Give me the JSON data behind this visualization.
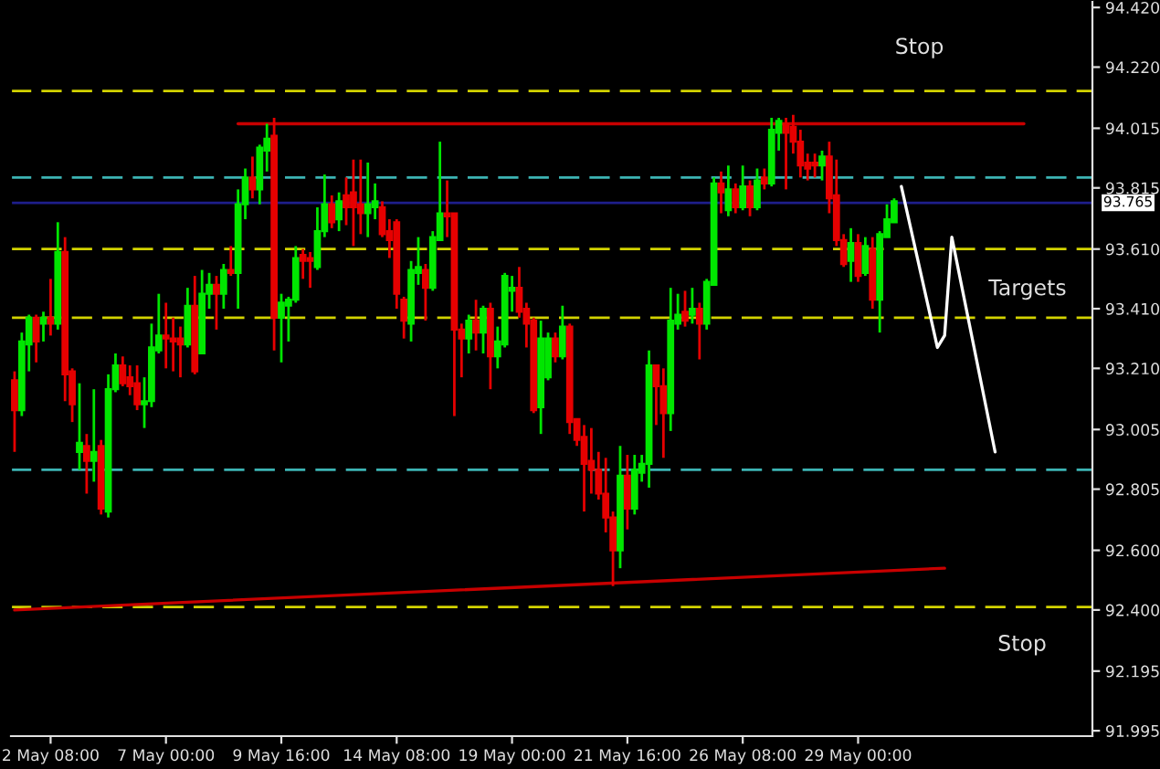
{
  "chart_data": {
    "type": "candlestick",
    "categories": [
      null,
      null,
      null,
      null,
      null,
      "2 May 08:00",
      null,
      null,
      null,
      null,
      null,
      null,
      null,
      null,
      null,
      null,
      null,
      null,
      null,
      null,
      null,
      "7 May 00:00",
      null,
      null,
      null,
      null,
      null,
      null,
      null,
      null,
      null,
      null,
      null,
      null,
      null,
      null,
      null,
      "9 May 16:00",
      null,
      null,
      null,
      null,
      null,
      null,
      null,
      null,
      null,
      null,
      null,
      null,
      null,
      null,
      null,
      "14 May 08:00",
      null,
      null,
      null,
      null,
      null,
      null,
      null,
      null,
      null,
      null,
      null,
      null,
      null,
      null,
      null,
      "19 May 00:00",
      null,
      null,
      null,
      null,
      null,
      null,
      null,
      null,
      null,
      null,
      null,
      null,
      null,
      null,
      null,
      "21 May 16:00",
      null,
      null,
      null,
      null,
      null,
      null,
      null,
      null,
      null,
      null,
      null,
      null,
      null,
      null,
      null,
      "26 May 08:00",
      null,
      null,
      null,
      null,
      null,
      null,
      null,
      null,
      null,
      null,
      null,
      null,
      null,
      null,
      null,
      "29 May 00:00",
      null,
      null,
      null,
      null,
      null,
      null,
      null,
      null,
      null,
      null,
      null,
      null,
      null,
      null,
      null,
      null,
      null,
      null,
      null,
      null,
      null,
      null,
      null,
      null,
      null,
      null,
      null,
      null,
      null,
      null,
      null,
      null
    ],
    "colors": [
      "#e60000",
      "#00e600",
      "#00e600",
      "#e60000",
      "#00e600",
      "#e60000",
      "#00e600",
      "#e60000",
      "#e60000",
      "#00e600",
      "#e60000",
      "#00e600",
      "#e60000",
      "#00e600",
      "#00e600",
      "#e60000",
      "#e60000",
      "#e60000",
      "#00e600",
      "#00e600",
      "#00e600",
      "#e60000",
      "#e60000",
      "#e60000",
      "#00e600",
      "#e60000",
      "#00e600",
      "#00e600",
      "#e60000",
      "#00e600",
      "#e60000",
      "#00e600",
      "#00e600",
      "#e60000",
      "#00e600",
      "#00e600",
      "#e60000",
      "#00e600",
      "#00e600",
      "#00e600",
      "#e60000",
      "#e60000",
      "#00e600",
      "#00e600",
      "#e60000",
      "#00e600",
      "#e60000",
      "#e60000",
      "#e60000",
      "#00e600",
      "#00e600",
      "#e60000",
      "#e60000",
      "#e60000",
      "#e60000",
      "#00e600",
      "#00e600",
      "#e60000",
      "#00e600",
      "#00e600",
      "#e60000",
      "#e60000",
      "#e60000",
      "#00e600",
      "#e60000",
      "#00e600",
      "#e60000",
      "#00e600",
      "#00e600",
      "#00e600",
      "#e60000",
      "#e60000",
      "#e60000",
      "#00e600",
      "#00e600",
      "#e60000",
      "#00e600",
      "#e60000",
      "#e60000",
      "#e60000",
      "#e60000",
      "#e60000",
      "#e60000",
      "#e60000",
      "#00e600",
      "#e60000",
      "#00e600",
      "#00e600",
      "#00e600",
      "#e60000",
      "#e60000",
      "#00e600",
      "#00e600",
      "#e60000",
      "#00e600",
      "#e60000",
      "#00e600",
      "#00e600",
      "#e60000",
      "#00e600",
      "#e60000",
      "#00e600",
      "#e60000",
      "#00e600",
      "#e60000",
      "#00e600",
      "#00e600",
      "#e60000",
      "#e60000",
      "#e60000",
      "#e60000",
      "#e60000",
      "#00e600",
      "#e60000",
      "#e60000",
      "#e60000",
      "#00e600",
      "#e60000",
      "#00e600",
      "#e60000",
      "#00e600",
      "#00e600",
      "#00e600",
      null,
      null,
      null,
      null,
      null,
      null,
      null,
      null,
      null,
      null,
      null,
      null,
      null,
      null,
      null,
      null,
      null,
      null,
      null,
      null,
      null,
      null,
      null,
      null,
      null,
      null,
      null
    ],
    "ohlc": [
      [
        93.17,
        93.2,
        92.93,
        93.07
      ],
      [
        93.07,
        93.33,
        93.05,
        93.3
      ],
      [
        93.29,
        93.39,
        93.2,
        93.38
      ],
      [
        93.38,
        93.39,
        93.23,
        93.3
      ],
      [
        93.36,
        93.4,
        93.3,
        93.38
      ],
      [
        93.38,
        93.51,
        93.32,
        93.36
      ],
      [
        93.36,
        93.7,
        93.34,
        93.6
      ],
      [
        93.6,
        93.65,
        93.1,
        93.19
      ],
      [
        93.2,
        93.21,
        93.03,
        93.09
      ],
      [
        92.93,
        93.16,
        92.87,
        92.96
      ],
      [
        92.95,
        92.99,
        92.79,
        92.9
      ],
      [
        92.9,
        93.14,
        92.83,
        92.93
      ],
      [
        92.95,
        92.97,
        92.72,
        92.74
      ],
      [
        92.73,
        93.19,
        92.71,
        93.14
      ],
      [
        93.14,
        93.26,
        93.13,
        93.22
      ],
      [
        93.22,
        93.25,
        93.15,
        93.16
      ],
      [
        93.18,
        93.22,
        93.12,
        93.15
      ],
      [
        93.16,
        93.22,
        93.07,
        93.09
      ],
      [
        93.09,
        93.18,
        93.01,
        93.1
      ],
      [
        93.1,
        93.36,
        93.08,
        93.28
      ],
      [
        93.27,
        93.46,
        93.26,
        93.32
      ],
      [
        93.32,
        93.43,
        93.21,
        93.31
      ],
      [
        93.31,
        93.38,
        93.2,
        93.3
      ],
      [
        93.31,
        93.35,
        93.18,
        93.29
      ],
      [
        93.29,
        93.48,
        93.28,
        93.42
      ],
      [
        93.42,
        93.52,
        93.19,
        93.2
      ],
      [
        93.26,
        93.54,
        93.26,
        93.46
      ],
      [
        93.46,
        93.53,
        93.41,
        93.49
      ],
      [
        93.49,
        93.52,
        93.34,
        93.46
      ],
      [
        93.46,
        93.56,
        93.41,
        93.54
      ],
      [
        93.54,
        93.62,
        93.52,
        93.53
      ],
      [
        93.53,
        93.81,
        93.41,
        93.76
      ],
      [
        93.76,
        93.88,
        93.71,
        93.85
      ],
      [
        93.85,
        93.92,
        93.78,
        93.81
      ],
      [
        93.81,
        93.96,
        93.76,
        93.95
      ],
      [
        93.94,
        94.03,
        93.87,
        93.98
      ],
      [
        93.99,
        94.05,
        93.27,
        93.38
      ],
      [
        93.38,
        93.46,
        93.23,
        93.43
      ],
      [
        93.42,
        93.45,
        93.3,
        93.44
      ],
      [
        93.44,
        93.62,
        93.43,
        93.58
      ],
      [
        93.59,
        93.61,
        93.51,
        93.57
      ],
      [
        93.58,
        93.6,
        93.48,
        93.57
      ],
      [
        93.55,
        93.75,
        93.54,
        93.67
      ],
      [
        93.67,
        93.86,
        93.65,
        93.76
      ],
      [
        93.76,
        93.79,
        93.68,
        93.7
      ],
      [
        93.71,
        93.8,
        93.67,
        93.77
      ],
      [
        93.79,
        93.85,
        93.69,
        93.75
      ],
      [
        93.8,
        93.91,
        93.62,
        93.75
      ],
      [
        93.76,
        93.91,
        93.66,
        93.73
      ],
      [
        93.73,
        93.9,
        93.65,
        93.76
      ],
      [
        93.75,
        93.83,
        93.71,
        93.77
      ],
      [
        93.75,
        93.77,
        93.65,
        93.66
      ],
      [
        93.67,
        93.71,
        93.58,
        93.64
      ],
      [
        93.7,
        93.71,
        93.41,
        93.46
      ],
      [
        93.44,
        93.45,
        93.31,
        93.37
      ],
      [
        93.36,
        93.57,
        93.3,
        93.54
      ],
      [
        93.53,
        93.65,
        93.49,
        93.55
      ],
      [
        93.54,
        93.56,
        93.37,
        93.48
      ],
      [
        93.48,
        93.67,
        93.47,
        93.65
      ],
      [
        93.64,
        93.97,
        93.64,
        93.73
      ],
      [
        93.73,
        93.84,
        93.65,
        93.72
      ],
      [
        93.73,
        93.73,
        93.05,
        93.34
      ],
      [
        93.34,
        93.36,
        93.18,
        93.31
      ],
      [
        93.31,
        93.39,
        93.26,
        93.37
      ],
      [
        93.37,
        93.44,
        93.27,
        93.33
      ],
      [
        93.33,
        93.42,
        93.26,
        93.41
      ],
      [
        93.41,
        93.43,
        93.14,
        93.25
      ],
      [
        93.25,
        93.35,
        93.21,
        93.3
      ],
      [
        93.29,
        93.53,
        93.28,
        93.52
      ],
      [
        93.47,
        93.52,
        93.4,
        93.48
      ],
      [
        93.48,
        93.55,
        93.38,
        93.4
      ],
      [
        93.41,
        93.43,
        93.28,
        93.36
      ],
      [
        93.37,
        93.38,
        93.06,
        93.07
      ],
      [
        93.08,
        93.37,
        92.99,
        93.31
      ],
      [
        93.18,
        93.33,
        93.17,
        93.31
      ],
      [
        93.31,
        93.33,
        93.23,
        93.25
      ],
      [
        93.25,
        93.42,
        93.24,
        93.35
      ],
      [
        93.35,
        93.36,
        92.99,
        93.03
      ],
      [
        93.04,
        93.04,
        92.95,
        92.97
      ],
      [
        92.98,
        93.02,
        92.73,
        92.89
      ],
      [
        92.9,
        93.01,
        92.79,
        92.87
      ],
      [
        92.87,
        92.93,
        92.77,
        92.79
      ],
      [
        92.79,
        92.91,
        92.66,
        92.71
      ],
      [
        92.71,
        92.73,
        92.48,
        92.6
      ],
      [
        92.6,
        92.95,
        92.54,
        92.85
      ],
      [
        92.85,
        92.92,
        92.67,
        92.74
      ],
      [
        92.74,
        92.92,
        92.72,
        92.87
      ],
      [
        92.86,
        92.92,
        92.83,
        92.89
      ],
      [
        92.89,
        93.27,
        92.81,
        93.22
      ],
      [
        93.22,
        93.22,
        93.02,
        93.15
      ],
      [
        93.15,
        93.21,
        92.91,
        93.06
      ],
      [
        93.06,
        93.48,
        93.0,
        93.37
      ],
      [
        93.36,
        93.46,
        93.34,
        93.39
      ],
      [
        93.4,
        93.47,
        93.35,
        93.37
      ],
      [
        93.39,
        93.48,
        93.36,
        93.41
      ],
      [
        93.41,
        93.43,
        93.24,
        93.36
      ],
      [
        93.36,
        93.51,
        93.34,
        93.5
      ],
      [
        93.49,
        93.85,
        93.49,
        93.83
      ],
      [
        93.83,
        93.87,
        93.73,
        93.8
      ],
      [
        93.74,
        93.89,
        93.72,
        93.81
      ],
      [
        93.81,
        93.83,
        93.73,
        93.75
      ],
      [
        93.75,
        93.89,
        93.74,
        93.82
      ],
      [
        93.82,
        93.84,
        93.72,
        93.75
      ],
      [
        93.75,
        93.88,
        93.74,
        93.84
      ],
      [
        93.85,
        93.88,
        93.81,
        93.83
      ],
      [
        93.83,
        94.05,
        93.82,
        94.01
      ],
      [
        94.0,
        94.05,
        93.94,
        94.04
      ],
      [
        94.03,
        94.05,
        93.81,
        94.0
      ],
      [
        94.02,
        94.06,
        93.93,
        93.97
      ],
      [
        93.97,
        94.01,
        93.85,
        93.89
      ],
      [
        93.9,
        93.93,
        93.84,
        93.88
      ],
      [
        93.9,
        93.93,
        93.85,
        93.89
      ],
      [
        93.89,
        93.94,
        93.84,
        93.92
      ],
      [
        93.92,
        93.97,
        93.73,
        93.78
      ],
      [
        93.79,
        93.91,
        93.62,
        93.64
      ],
      [
        93.64,
        93.66,
        93.55,
        93.56
      ],
      [
        93.57,
        93.68,
        93.5,
        93.63
      ],
      [
        93.63,
        93.66,
        93.5,
        93.52
      ],
      [
        93.53,
        93.65,
        93.52,
        93.62
      ],
      [
        93.61,
        93.65,
        93.41,
        93.44
      ],
      [
        93.44,
        93.67,
        93.33,
        93.66
      ],
      [
        93.65,
        93.76,
        93.65,
        93.71
      ],
      [
        93.7,
        93.78,
        93.7,
        93.77
      ],
      null,
      null,
      null,
      null,
      null,
      null,
      null,
      null,
      null,
      null,
      null,
      null,
      null,
      null,
      null,
      null,
      null,
      null,
      null,
      null,
      null,
      null,
      null,
      null,
      null,
      null,
      null
    ],
    "series": [
      {
        "type": "line",
        "color": "#c80000",
        "values": [
          null,
          null,
          null,
          null,
          null,
          null,
          null,
          null,
          null,
          null,
          null,
          null,
          null,
          null,
          null,
          null,
          null,
          null,
          null,
          null,
          null,
          null,
          null,
          null,
          null,
          null,
          null,
          null,
          null,
          null,
          null,
          94.03,
          null,
          null,
          null,
          null,
          null,
          null,
          null,
          null,
          null,
          null,
          null,
          null,
          null,
          null,
          null,
          null,
          null,
          null,
          null,
          null,
          null,
          null,
          null,
          null,
          null,
          null,
          null,
          null,
          null,
          null,
          null,
          null,
          null,
          null,
          null,
          null,
          null,
          null,
          null,
          null,
          null,
          null,
          null,
          null,
          null,
          null,
          null,
          null,
          null,
          null,
          null,
          null,
          null,
          null,
          null,
          null,
          null,
          null,
          null,
          null,
          null,
          null,
          null,
          null,
          null,
          null,
          null,
          null,
          null,
          null,
          null,
          null,
          null,
          null,
          null,
          null,
          null,
          null,
          null,
          null,
          null,
          null,
          null,
          null,
          null,
          null,
          null,
          null,
          null,
          null,
          null,
          null,
          null,
          null,
          null,
          null,
          null,
          null,
          null,
          null,
          null,
          null,
          null,
          null,
          null,
          null,
          null,
          null,
          94.03,
          null,
          null,
          null,
          null,
          null,
          null,
          null,
          null,
          null
        ]
      },
      {
        "type": "line",
        "color": "#c80000",
        "values": [
          92.4,
          null,
          null,
          null,
          null,
          null,
          null,
          null,
          null,
          null,
          null,
          null,
          null,
          null,
          null,
          null,
          null,
          null,
          null,
          null,
          null,
          null,
          null,
          null,
          null,
          null,
          null,
          null,
          null,
          null,
          null,
          null,
          null,
          null,
          null,
          null,
          null,
          null,
          null,
          null,
          null,
          null,
          null,
          null,
          null,
          null,
          null,
          null,
          null,
          null,
          null,
          null,
          null,
          null,
          null,
          null,
          null,
          null,
          null,
          null,
          null,
          null,
          null,
          null,
          null,
          null,
          null,
          null,
          null,
          null,
          null,
          null,
          null,
          null,
          null,
          null,
          null,
          null,
          null,
          null,
          null,
          null,
          null,
          null,
          null,
          null,
          null,
          null,
          null,
          null,
          null,
          null,
          null,
          null,
          null,
          null,
          null,
          null,
          null,
          null,
          null,
          null,
          null,
          null,
          null,
          null,
          null,
          null,
          null,
          null,
          null,
          null,
          null,
          null,
          null,
          null,
          null,
          null,
          null,
          null,
          null,
          null,
          null,
          null,
          null,
          null,
          null,
          null,
          null,
          92.54,
          null,
          null,
          null,
          null,
          null,
          null,
          null,
          null,
          null,
          null,
          null,
          null,
          null,
          null,
          null,
          null,
          null,
          null,
          null,
          null
        ]
      },
      {
        "type": "line",
        "color": "#ffffff",
        "values": [
          null,
          null,
          null,
          null,
          null,
          null,
          null,
          null,
          null,
          null,
          null,
          null,
          null,
          null,
          null,
          null,
          null,
          null,
          null,
          null,
          null,
          null,
          null,
          null,
          null,
          null,
          null,
          null,
          null,
          null,
          null,
          null,
          null,
          null,
          null,
          null,
          null,
          null,
          null,
          null,
          null,
          null,
          null,
          null,
          null,
          null,
          null,
          null,
          null,
          null,
          null,
          null,
          null,
          null,
          null,
          null,
          null,
          null,
          null,
          null,
          null,
          null,
          null,
          null,
          null,
          null,
          null,
          null,
          null,
          null,
          null,
          null,
          null,
          null,
          null,
          null,
          null,
          null,
          null,
          null,
          null,
          null,
          null,
          null,
          null,
          null,
          null,
          null,
          null,
          null,
          null,
          null,
          null,
          null,
          null,
          null,
          null,
          null,
          null,
          null,
          null,
          null,
          null,
          null,
          null,
          null,
          null,
          null,
          null,
          null,
          null,
          null,
          null,
          null,
          null,
          null,
          null,
          null,
          null,
          null,
          null,
          null,
          null,
          93.82,
          null,
          null,
          null,
          null,
          93.28,
          93.32,
          93.65,
          null,
          null,
          null,
          null,
          null,
          92.93,
          null,
          null,
          null,
          null,
          null,
          null,
          null,
          null,
          null,
          null,
          null,
          null,
          null
        ]
      }
    ],
    "ref_lines": [
      {
        "axis": "y",
        "value": 94.14,
        "color": "#d2d200",
        "line_style": "dashed"
      },
      {
        "axis": "y",
        "value": 93.85,
        "color": "#3cb4b4",
        "line_style": "dashed"
      },
      {
        "axis": "y",
        "value": 93.765,
        "label": "93.765",
        "color": "#1e1e8c",
        "line_style": "solid"
      },
      {
        "axis": "y",
        "value": 93.61,
        "color": "#d2d200",
        "line_style": "dashed"
      },
      {
        "axis": "y",
        "value": 93.38,
        "color": "#d2d200",
        "line_style": "dashed"
      },
      {
        "axis": "y",
        "value": 92.87,
        "color": "#3cb4b4",
        "line_style": "dashed"
      },
      {
        "axis": "y",
        "value": 92.41,
        "color": "#d2d200",
        "line_style": "dashed"
      }
    ],
    "annotations": [
      "Stop",
      "Targets",
      "Stop"
    ],
    "ylim": [
      91.977,
      94.445
    ],
    "yticks": [
      {
        "value": 94.42,
        "label": "94.420"
      },
      {
        "value": 94.22,
        "label": "94.220"
      },
      {
        "value": 94.015,
        "label": "94.015"
      },
      {
        "value": 93.815,
        "label": "93.815"
      },
      {
        "value": 93.61,
        "label": "93.610"
      },
      {
        "value": 93.41,
        "label": "93.410"
      },
      {
        "value": 93.21,
        "label": "93.210"
      },
      {
        "value": 93.005,
        "label": "93.005"
      },
      {
        "value": 92.805,
        "label": "92.805"
      },
      {
        "value": 92.6,
        "label": "92.600"
      },
      {
        "value": 92.4,
        "label": "92.400"
      },
      {
        "value": 92.195,
        "label": "92.195"
      },
      {
        "value": 91.995,
        "label": "91.995"
      }
    ]
  }
}
